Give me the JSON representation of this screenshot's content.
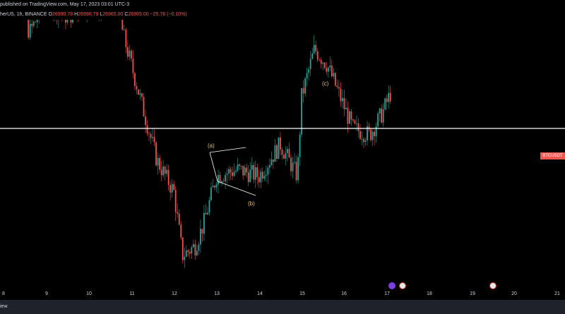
{
  "header": {
    "published": "published on TradingView.com, May 17, 2023 03:01 UTC-3",
    "symbol": "herUS, 1h, BINANCE",
    "open_lbl": "O",
    "open": "26990.78",
    "high_lbl": "H",
    "high": "26990.79",
    "low_lbl": "L",
    "low": "26965.00",
    "close_lbl": "C",
    "close": "26965.00",
    "change": "−25.78 (−0.10%)"
  },
  "price_tag": "BTCUSDT",
  "annotations": {
    "a": "(a)",
    "b": "(b)",
    "c": "(c)"
  },
  "x_axis": [
    "8",
    "9",
    "10",
    "11",
    "12",
    "13",
    "14",
    "15",
    "16",
    "17",
    "18",
    "19",
    "20",
    "21"
  ],
  "footer": {
    "brand": "iew"
  },
  "colors": {
    "up": "#26a69a",
    "down": "#ef5350",
    "background": "#000000",
    "hline": "#ffffff",
    "label": "#e8c36a"
  },
  "icons": [
    "lightning-event-icon",
    "us-flag-event-icon",
    "us-flag-event-icon"
  ],
  "chart_data": {
    "type": "candlestick",
    "title": "",
    "x": [
      "8",
      "9",
      "10",
      "11",
      "12",
      "13",
      "14",
      "15",
      "16",
      "17",
      "18",
      "19",
      "20",
      "21"
    ],
    "price_path": [
      {
        "x": "8.0",
        "y": 27550
      },
      {
        "x": "8.3",
        "y": 27350
      },
      {
        "x": "8.6",
        "y": 27150
      },
      {
        "x": "9.0",
        "y": 27250
      },
      {
        "x": "9.5",
        "y": 27200
      },
      {
        "x": "10.0",
        "y": 27250
      },
      {
        "x": "10.4",
        "y": 27220
      },
      {
        "x": "10.5",
        "y": 27450
      },
      {
        "x": "10.8",
        "y": 27150
      },
      {
        "x": "11.2",
        "y": 26950
      },
      {
        "x": "11.6",
        "y": 26750
      },
      {
        "x": "12.0",
        "y": 26650
      },
      {
        "x": "12.2",
        "y": 26450
      },
      {
        "x": "12.5",
        "y": 26480
      },
      {
        "x": "12.7",
        "y": 26550
      },
      {
        "x": "13.0",
        "y": 26700
      },
      {
        "x": "13.5",
        "y": 26720
      },
      {
        "x": "14.0",
        "y": 26700
      },
      {
        "x": "14.5",
        "y": 26800
      },
      {
        "x": "14.9",
        "y": 26700
      },
      {
        "x": "15.0",
        "y": 26950
      },
      {
        "x": "15.3",
        "y": 27100
      },
      {
        "x": "15.6",
        "y": 27050
      },
      {
        "x": "15.9",
        "y": 26950
      },
      {
        "x": "16.2",
        "y": 26850
      },
      {
        "x": "16.6",
        "y": 26830
      },
      {
        "x": "16.9",
        "y": 26900
      },
      {
        "x": "17.1",
        "y": 26965
      }
    ],
    "horizontal_line": "shown",
    "wave_labels": [
      "(a)",
      "(b)",
      "(c)"
    ]
  }
}
